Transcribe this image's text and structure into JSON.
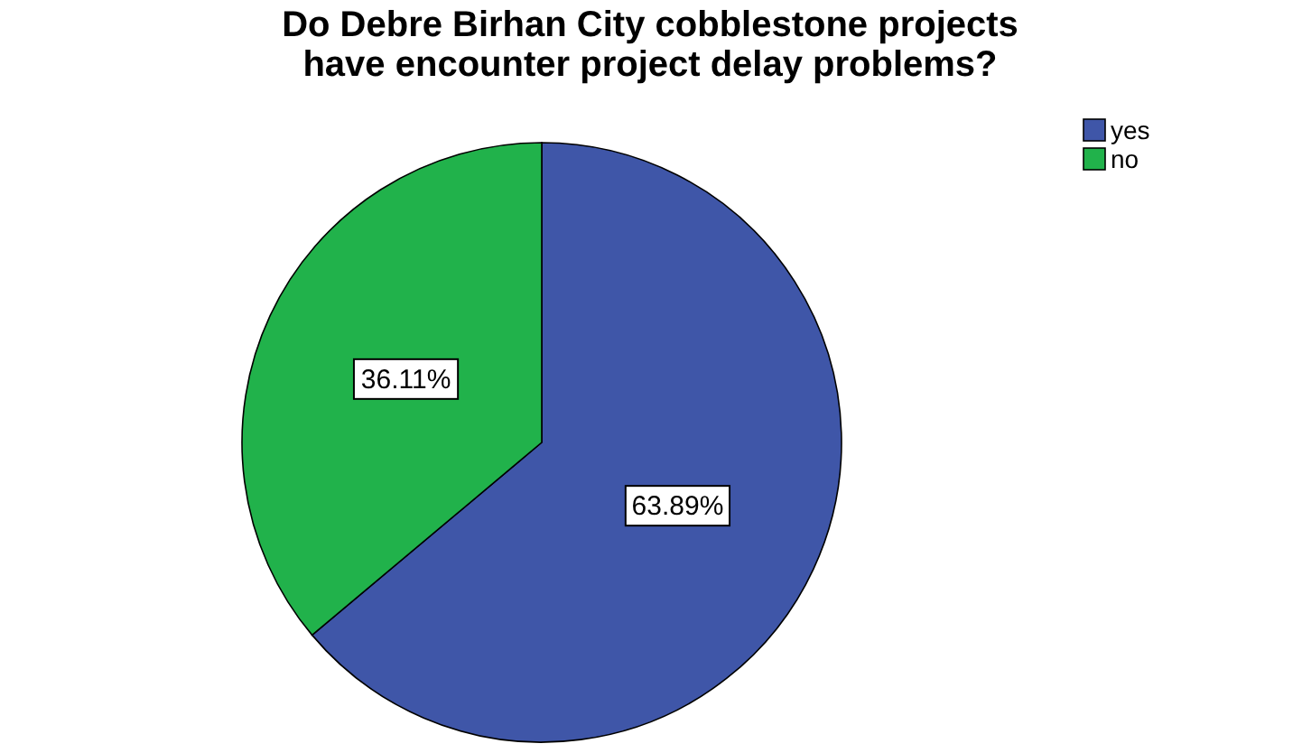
{
  "chart_data": {
    "type": "pie",
    "title": "Do Debre Birhan City cobblestone projects\nhave encounter project delay problems?",
    "categories": [
      "yes",
      "no"
    ],
    "values": [
      63.89,
      36.11
    ],
    "colors": [
      "#3f56a8",
      "#21b24b"
    ],
    "value_labels": [
      "63.89%",
      "36.11%"
    ],
    "legend": "top right"
  }
}
